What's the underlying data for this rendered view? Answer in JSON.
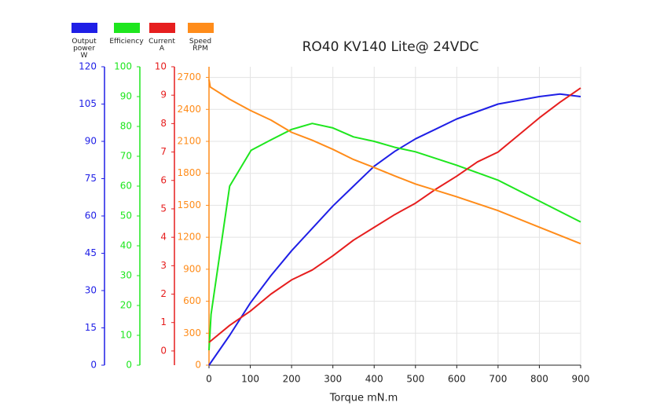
{
  "chart_data": {
    "type": "line",
    "title": "RO40 KV140 Lite@ 24VDC",
    "x_label": "Torque mN.m",
    "xlim": [
      0,
      900
    ],
    "xticks": [
      0,
      100,
      200,
      300,
      400,
      500,
      600,
      700,
      800,
      900
    ],
    "grid": true,
    "series": [
      {
        "name": "Output power W",
        "color": "#1f1fe6",
        "ylim": [
          0,
          120
        ],
        "yticks": [
          0,
          15,
          30,
          45,
          60,
          75,
          90,
          105,
          120
        ],
        "x": [
          0,
          50,
          100,
          150,
          200,
          250,
          300,
          350,
          400,
          450,
          500,
          550,
          600,
          650,
          700,
          800,
          850,
          900
        ],
        "values": [
          0,
          12,
          25,
          36,
          46,
          55,
          64,
          72,
          80,
          86,
          91,
          95,
          99,
          102,
          105,
          108,
          109,
          108
        ]
      },
      {
        "name": "Efficiency",
        "color": "#1ee61e",
        "ylim": [
          0,
          100
        ],
        "yticks": [
          0,
          10,
          20,
          30,
          40,
          50,
          60,
          70,
          80,
          90,
          100
        ],
        "x": [
          0,
          5,
          50,
          102,
          150,
          200,
          250,
          300,
          350,
          400,
          450,
          500,
          600,
          700,
          800,
          900
        ],
        "values": [
          5,
          17,
          60,
          72,
          75.5,
          79,
          81,
          79.5,
          76.5,
          75,
          73,
          71.5,
          67,
          62,
          55,
          48
        ]
      },
      {
        "name": "Current A",
        "color": "#e61e1e",
        "ylim": [
          -0.5,
          10
        ],
        "yticks": [
          0,
          1,
          2,
          3,
          4,
          5,
          6,
          7,
          8,
          9,
          10
        ],
        "x": [
          0,
          50,
          100,
          150,
          200,
          250,
          300,
          350,
          400,
          450,
          500,
          550,
          600,
          650,
          700,
          750,
          800,
          850,
          900
        ],
        "values": [
          0.3,
          0.9,
          1.4,
          2.0,
          2.5,
          2.85,
          3.35,
          3.9,
          4.35,
          4.8,
          5.2,
          5.7,
          6.15,
          6.65,
          7.0,
          7.6,
          8.2,
          8.75,
          9.25
        ]
      },
      {
        "name": "Speed RPM",
        "color": "#ff8c1a",
        "ylim": [
          0,
          2800
        ],
        "yticks": [
          0,
          300,
          600,
          900,
          1200,
          1500,
          1800,
          2100,
          2400,
          2700
        ],
        "x": [
          0,
          3,
          50,
          100,
          150,
          200,
          250,
          300,
          350,
          400,
          450,
          500,
          600,
          700,
          800,
          900
        ],
        "values": [
          2680,
          2610,
          2495,
          2390,
          2300,
          2185,
          2110,
          2025,
          1930,
          1855,
          1775,
          1700,
          1580,
          1450,
          1295,
          1140
        ]
      }
    ]
  }
}
